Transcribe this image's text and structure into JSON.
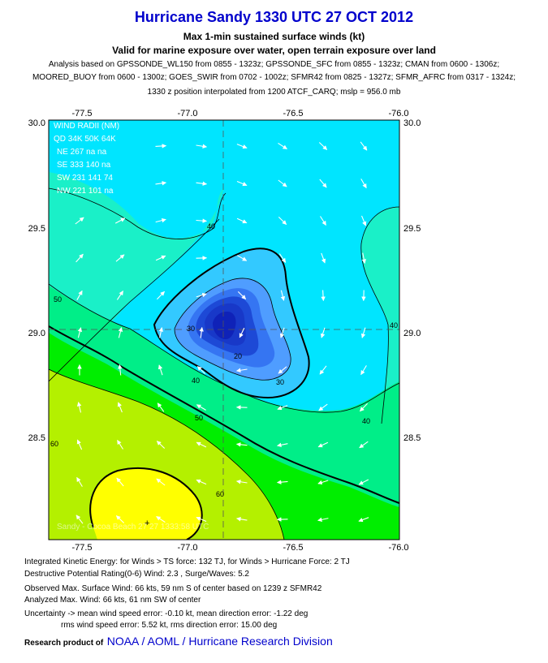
{
  "title": "Hurricane Sandy 1330 UTC 27 OCT 2012",
  "subtitle1": "Max 1-min sustained surface winds (kt)",
  "subtitle2": "Valid for marine exposure over water, open terrain exposure over land",
  "analysis_lines": [
    "Analysis based on GPSSONDE_WL150 from 0855 - 1323z; GPSSONDE_SFC from 0855 - 1323z; CMAN from 0600 - 1306z;",
    "MOORED_BUOY from 0600 - 1300z; GOES_SWIR from 0702 - 1002z; SFMR42 from 0825 - 1327z; SFMR_AFRC from 0317 - 1324z;",
    "1330 z position interpolated from 1200 ATCF_CARQ; mslp = 956.0 mb"
  ],
  "map": {
    "lon_ticks": [
      "-77.5",
      "-77.0",
      "-76.5",
      "-76.0"
    ],
    "lat_ticks": [
      "30.0",
      "29.5",
      "29.0",
      "28.5"
    ],
    "lon_range": [
      -77.75,
      -75.75
    ],
    "lat_range": [
      28.0,
      30.0
    ],
    "center": {
      "lon": -76.72,
      "lat": 29.02
    },
    "contour_labels": [
      "20",
      "30",
      "30",
      "40",
      "40",
      "40",
      "40",
      "50",
      "50",
      "60",
      "60"
    ],
    "colors": {
      "cyan": "#00e5ff",
      "light_cyan": "#33c9ff",
      "blue_light": "#4f9dff",
      "blue_mid": "#3575f2",
      "blue_dark": "#1d49d6",
      "aqua_green": "#1af0c8",
      "green_mid": "#00ee88",
      "green": "#00ee00",
      "yellow_green": "#b4f000",
      "yellow": "#ffff00"
    },
    "wind_radii": {
      "header1": "WIND RADII (NM)",
      "header2": "QD  34K  50K  64K",
      "rows": [
        "NE  267   na    na",
        "SE  333  140    na",
        "SW  231  141    74",
        "NW  221  101    na"
      ]
    },
    "footer_overlay": "Sandy  - Cocoa Beach  27  27  1333:58 UTC"
  },
  "footer": {
    "ike": "Integrated Kinetic Energy: for Winds > TS force: 132 TJ, for Winds > Hurricane Force: 2 TJ",
    "dpr": "Destructive Potential Rating(0-6)  Wind: 2.3 , Surge/Waves: 5.2",
    "observed": "Observed Max. Surface Wind: 66 kts, 59 nm S of center based on 1239 z SFMR42",
    "analyzed": "Analyzed Max. Wind: 66 kts, 61 nm  SW of center",
    "uncertainty1": "Uncertainty -> mean wind speed error:  -0.10 kt, mean direction error:  -1.22 deg",
    "uncertainty2": "rms wind speed error: 5.52 kt, rms direction error: 15.00 deg",
    "credit_prefix": "Research product of",
    "credit_org": "NOAA  /  AOML  /  Hurricane Research Division"
  }
}
